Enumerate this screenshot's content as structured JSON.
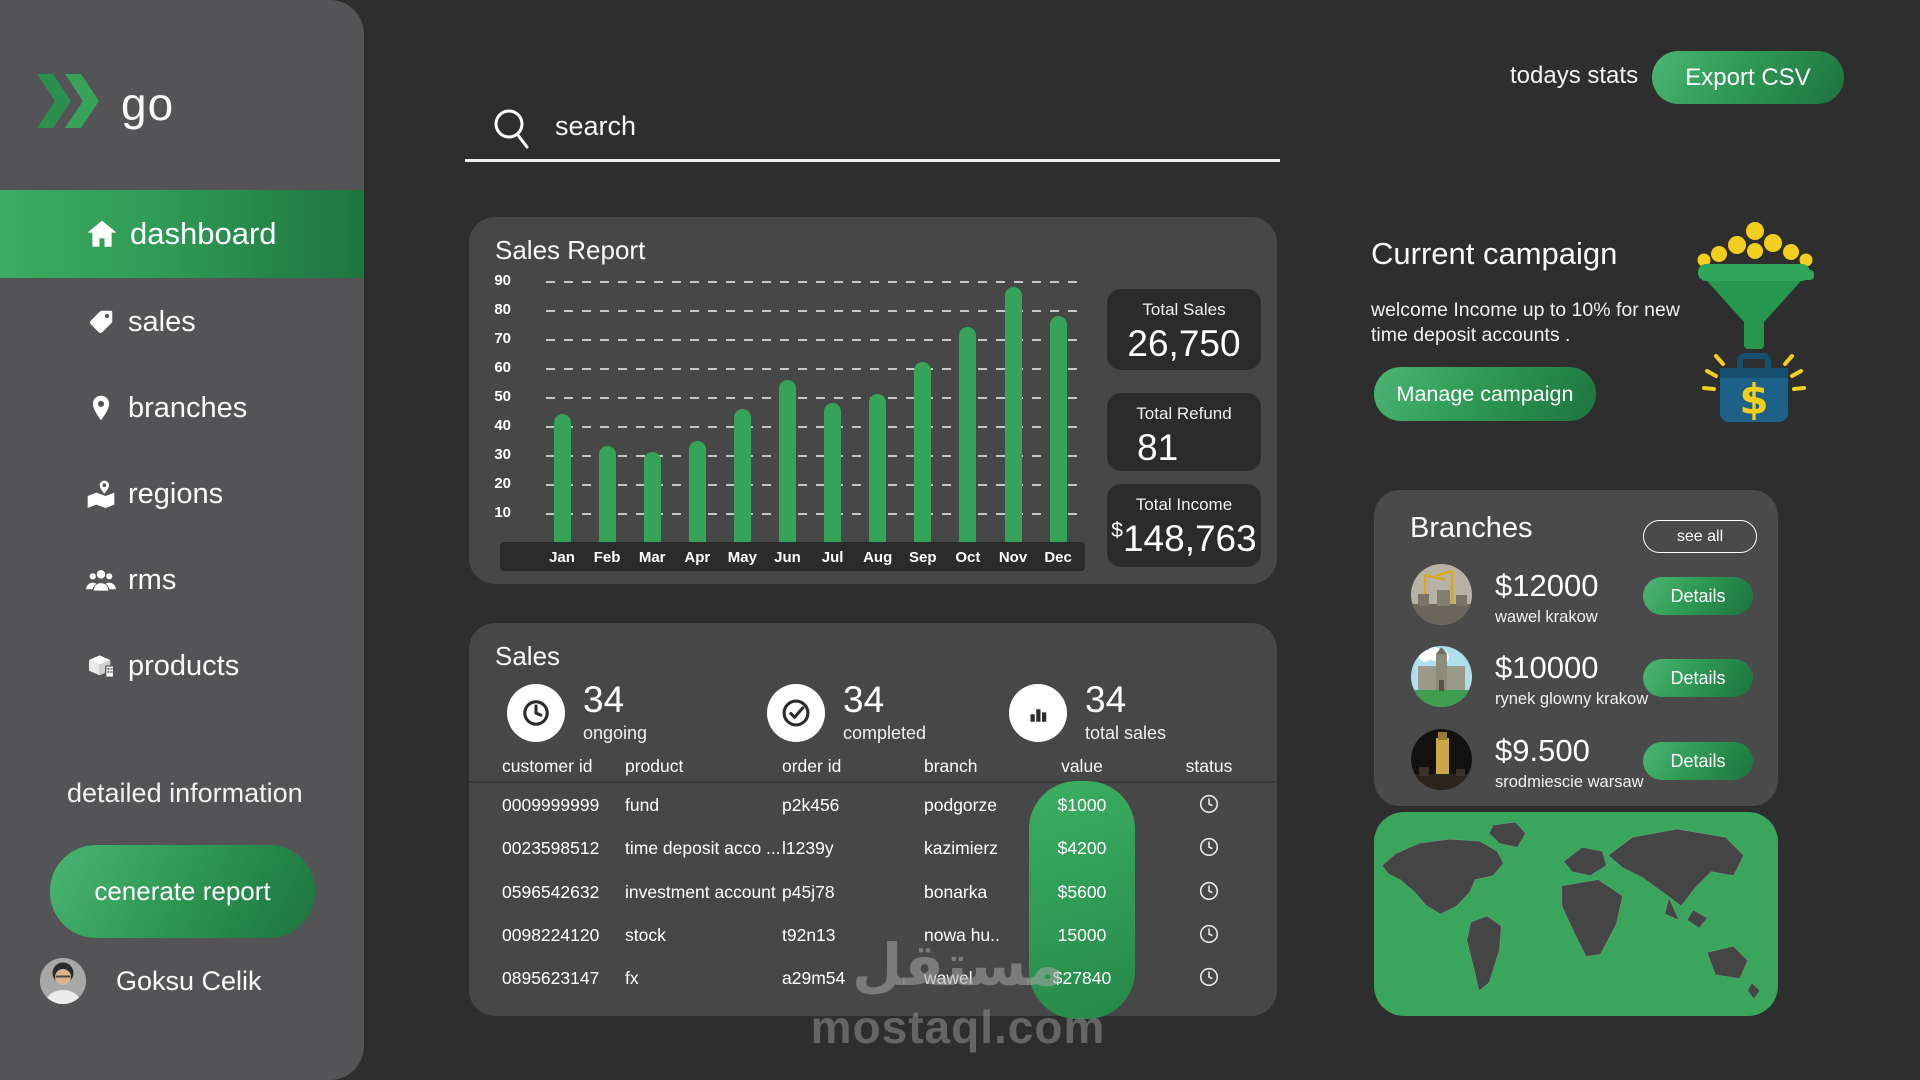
{
  "colors": {
    "accent_green": "#36a35b",
    "dark_green": "#1d7340",
    "page_bg": "#2e2e2e",
    "card_bg": "#474747",
    "sidebar_bg": "#545457",
    "inset_bg": "#2b2b2b",
    "map_green": "#3aa55c",
    "coin_yellow": "#f2cf1f",
    "case_blue": "#1d6189"
  },
  "sidebar": {
    "logo_text": "go",
    "items": [
      {
        "label": "dashboard",
        "active": true
      },
      {
        "label": "sales",
        "active": false
      },
      {
        "label": "branches",
        "active": false
      },
      {
        "label": "regions",
        "active": false
      },
      {
        "label": "rms",
        "active": false
      },
      {
        "label": "products",
        "active": false
      }
    ],
    "note": "detailed information",
    "report_button": "cenerate report",
    "user_name": "Goksu Celik"
  },
  "topbar": {
    "search_placeholder": "search",
    "stats_label": "todays stats",
    "export_button": "Export CSV"
  },
  "sales_report": {
    "title": "Sales Report",
    "stats": [
      {
        "label": "Total Sales",
        "prefix": "",
        "value": "26,750"
      },
      {
        "label": "Total Refund",
        "prefix": "",
        "value": "81"
      },
      {
        "label": "Total Income",
        "prefix": "$",
        "value": "148,763"
      }
    ]
  },
  "chart_data": {
    "type": "bar",
    "title": "Sales Report",
    "categories": [
      "Jan",
      "Feb",
      "Mar",
      "Apr",
      "May",
      "Jun",
      "Jul",
      "Aug",
      "Sep",
      "Oct",
      "Nov",
      "Dec"
    ],
    "values": [
      44,
      33,
      31,
      35,
      46,
      56,
      48,
      51,
      62,
      74,
      88,
      78
    ],
    "xlabel": "",
    "ylabel": "",
    "yticks": [
      10,
      20,
      30,
      40,
      50,
      60,
      70,
      80,
      90
    ],
    "ylim": [
      0,
      100
    ],
    "grid": "dashed-horizontal",
    "legend": "none",
    "bar_color": "#36a35b"
  },
  "sales_section": {
    "title": "Sales",
    "counters": [
      {
        "icon": "clock-icon",
        "value": "34",
        "label": "ongoing"
      },
      {
        "icon": "check-circle-icon",
        "value": "34",
        "label": "completed"
      },
      {
        "icon": "bar-chart-icon",
        "value": "34",
        "label": "total sales"
      }
    ],
    "columns": [
      "customer id",
      "product",
      "order id",
      "branch",
      "value",
      "status"
    ],
    "rows": [
      [
        "0009999999",
        "fund",
        "p2k456",
        "podgorze",
        "$1000"
      ],
      [
        "0023598512",
        "time deposit acco ...",
        "l1239y",
        "kazimierz",
        "$4200"
      ],
      [
        "0596542632",
        "investment account",
        "p45j78",
        "bonarka",
        "$5600"
      ],
      [
        "0098224120",
        "stock",
        "t92n13",
        "nowa hu..",
        "15000"
      ],
      [
        "0895623147",
        "fx",
        "a29m54",
        "wawel",
        "$27840"
      ]
    ],
    "status_icon": "clock-icon"
  },
  "campaign": {
    "title": "Current campaign",
    "description": "welcome Income up to 10% for new time deposit accounts .",
    "button": "Manage campaign"
  },
  "branches_panel": {
    "title": "Branches",
    "see_all": "see all",
    "details_label": "Details",
    "items": [
      {
        "amount": "$12000",
        "name": "wawel krakow"
      },
      {
        "amount": "$10000",
        "name": "rynek glowny krakow"
      },
      {
        "amount": "$9.500",
        "name": "srodmiescie warsaw"
      }
    ]
  },
  "watermark": {
    "arabic": "مستقل",
    "domain": "mostaql.com"
  }
}
